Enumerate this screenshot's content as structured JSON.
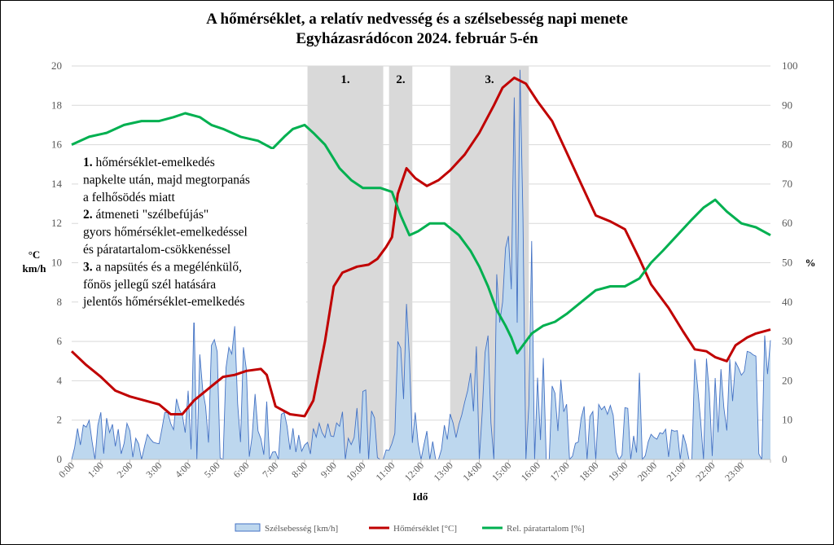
{
  "chart_data": {
    "type": "line",
    "title": "A hőmérséklet, a relatív nedvesség és a szélsebesség napi menete",
    "subtitle": "Egyházasrádócon 2024. február 5-én",
    "xlabel": "Idő",
    "ylabel_left": [
      "°C",
      "km/h"
    ],
    "ylabel_right": "%",
    "xlim_hours": [
      0,
      24
    ],
    "ylim_left": [
      0,
      20
    ],
    "ylim_right": [
      0,
      100
    ],
    "yticks_left": [
      "0",
      "2",
      "4",
      "6",
      "8",
      "10",
      "12",
      "14",
      "16",
      "18",
      "20"
    ],
    "yticks_right": [
      "0",
      "10",
      "20",
      "30",
      "40",
      "50",
      "60",
      "70",
      "80",
      "90",
      "100"
    ],
    "xticks": [
      "0:00",
      "1:00",
      "2:00",
      "3:00",
      "4:00",
      "5:00",
      "6:00",
      "7:00",
      "8:00",
      "9:00",
      "10:00",
      "11:00",
      "12:00",
      "13:00",
      "14:00",
      "15:00",
      "16:00",
      "17:00",
      "18:00",
      "19:00",
      "20:00",
      "21:00",
      "22:00",
      "23:00"
    ],
    "grid": "horizontal",
    "colors": {
      "wind_fill": "#bdd7ee",
      "wind_line": "#4472c4",
      "temp": "#c00000",
      "rh": "#00b050",
      "band": "#d9d9d9"
    },
    "shaded_periods": [
      {
        "label": "1.",
        "start_h": 8.1,
        "end_h": 10.7
      },
      {
        "label": "2.",
        "start_h": 10.9,
        "end_h": 11.7
      },
      {
        "label": "3.",
        "start_h": 13.0,
        "end_h": 15.7
      }
    ],
    "series": [
      {
        "name": "Szélsebesség [km/h]",
        "axis": "left",
        "style": "area",
        "step_h": 0.1,
        "seed": 7,
        "envelope": [
          [
            0,
            1.0
          ],
          [
            0.5,
            1.2
          ],
          [
            1,
            1.3
          ],
          [
            1.5,
            0.9
          ],
          [
            2,
            1.0
          ],
          [
            2.5,
            0.9
          ],
          [
            3,
            1.2
          ],
          [
            3.5,
            1.5
          ],
          [
            4,
            2.2
          ],
          [
            4.5,
            2.8
          ],
          [
            5,
            3.6
          ],
          [
            5.5,
            3.9
          ],
          [
            6,
            3.6
          ],
          [
            6.5,
            2.5
          ],
          [
            7,
            1.5
          ],
          [
            7.5,
            1.0
          ],
          [
            8,
            0.5
          ],
          [
            8.5,
            1.0
          ],
          [
            9,
            1.3
          ],
          [
            9.5,
            1.8
          ],
          [
            10,
            2.1
          ],
          [
            10.5,
            1.3
          ],
          [
            10.8,
            0.4
          ],
          [
            11,
            2.0
          ],
          [
            11.3,
            4.2
          ],
          [
            11.6,
            3.2
          ],
          [
            12,
            1.5
          ],
          [
            12.5,
            1.0
          ],
          [
            13,
            1.2
          ],
          [
            13.5,
            2.2
          ],
          [
            14,
            3.2
          ],
          [
            14.5,
            4.8
          ],
          [
            15,
            6.5
          ],
          [
            15.5,
            5.5
          ],
          [
            16,
            3.0
          ],
          [
            16.5,
            2.3
          ],
          [
            17,
            2.0
          ],
          [
            17.5,
            1.7
          ],
          [
            18,
            1.5
          ],
          [
            18.5,
            1.6
          ],
          [
            19,
            1.4
          ],
          [
            19.5,
            1.2
          ],
          [
            20,
            0.8
          ],
          [
            20.5,
            1.0
          ],
          [
            21,
            1.8
          ],
          [
            21.5,
            2.4
          ],
          [
            22,
            2.7
          ],
          [
            22.5,
            2.9
          ],
          [
            23,
            3.1
          ],
          [
            23.5,
            3.3
          ],
          [
            24,
            3.5
          ]
        ],
        "peaks": [
          [
            4.2,
            7.5
          ],
          [
            5.9,
            5.7
          ],
          [
            11.2,
            6.0
          ],
          [
            11.5,
            7.9
          ],
          [
            14.3,
            6.3
          ],
          [
            14.8,
            8.0
          ],
          [
            15.2,
            18.4
          ],
          [
            15.35,
            19.8
          ],
          [
            15.5,
            12.3
          ],
          [
            15.8,
            11.1
          ],
          [
            19.5,
            4.4
          ],
          [
            21.4,
            5.1
          ],
          [
            23.8,
            6.3
          ]
        ]
      },
      {
        "name": "Hőmérséklet [°C]",
        "axis": "left",
        "style": "line",
        "points": [
          [
            0,
            5.5
          ],
          [
            0.5,
            4.8
          ],
          [
            1,
            4.2
          ],
          [
            1.5,
            3.5
          ],
          [
            2,
            3.2
          ],
          [
            2.5,
            3.0
          ],
          [
            3,
            2.8
          ],
          [
            3.4,
            2.3
          ],
          [
            3.8,
            2.3
          ],
          [
            4.2,
            3.0
          ],
          [
            4.7,
            3.6
          ],
          [
            5.2,
            4.2
          ],
          [
            5.6,
            4.3
          ],
          [
            6.0,
            4.5
          ],
          [
            6.5,
            4.6
          ],
          [
            6.7,
            4.3
          ],
          [
            7.0,
            2.7
          ],
          [
            7.5,
            2.3
          ],
          [
            8.0,
            2.2
          ],
          [
            8.3,
            3.0
          ],
          [
            8.7,
            6.0
          ],
          [
            9.0,
            8.8
          ],
          [
            9.3,
            9.5
          ],
          [
            9.8,
            9.8
          ],
          [
            10.2,
            9.9
          ],
          [
            10.5,
            10.2
          ],
          [
            10.8,
            10.8
          ],
          [
            11.0,
            11.3
          ],
          [
            11.2,
            13.5
          ],
          [
            11.5,
            14.8
          ],
          [
            11.8,
            14.3
          ],
          [
            12.2,
            13.9
          ],
          [
            12.6,
            14.2
          ],
          [
            13.0,
            14.7
          ],
          [
            13.5,
            15.5
          ],
          [
            14.0,
            16.6
          ],
          [
            14.5,
            18.0
          ],
          [
            14.8,
            18.9
          ],
          [
            15.2,
            19.4
          ],
          [
            15.6,
            19.1
          ],
          [
            16.0,
            18.2
          ],
          [
            16.5,
            17.2
          ],
          [
            17.0,
            15.6
          ],
          [
            17.5,
            14.0
          ],
          [
            18.0,
            12.4
          ],
          [
            18.5,
            12.1
          ],
          [
            19.0,
            11.7
          ],
          [
            19.5,
            10.2
          ],
          [
            19.9,
            8.9
          ],
          [
            20.5,
            7.7
          ],
          [
            21.0,
            6.5
          ],
          [
            21.4,
            5.6
          ],
          [
            21.8,
            5.5
          ],
          [
            22.1,
            5.2
          ],
          [
            22.5,
            5.0
          ],
          [
            22.8,
            5.8
          ],
          [
            23.2,
            6.2
          ],
          [
            23.5,
            6.4
          ],
          [
            24.0,
            6.6
          ]
        ]
      },
      {
        "name": "Rel. páratartalom [%]",
        "axis": "right",
        "style": "line",
        "points": [
          [
            0,
            80
          ],
          [
            0.6,
            82
          ],
          [
            1.2,
            83
          ],
          [
            1.8,
            85
          ],
          [
            2.4,
            86
          ],
          [
            3.0,
            86
          ],
          [
            3.5,
            87
          ],
          [
            3.9,
            88
          ],
          [
            4.4,
            87
          ],
          [
            4.8,
            85
          ],
          [
            5.2,
            84
          ],
          [
            5.8,
            82
          ],
          [
            6.4,
            81
          ],
          [
            6.9,
            79
          ],
          [
            7.3,
            82
          ],
          [
            7.6,
            84
          ],
          [
            8.0,
            85
          ],
          [
            8.3,
            83
          ],
          [
            8.7,
            80
          ],
          [
            9.2,
            74
          ],
          [
            9.6,
            71
          ],
          [
            10.0,
            69
          ],
          [
            10.6,
            69
          ],
          [
            11.0,
            68
          ],
          [
            11.3,
            62
          ],
          [
            11.6,
            57
          ],
          [
            11.9,
            58
          ],
          [
            12.3,
            60
          ],
          [
            12.8,
            60
          ],
          [
            13.3,
            57
          ],
          [
            13.7,
            53
          ],
          [
            14.0,
            49
          ],
          [
            14.3,
            44
          ],
          [
            14.6,
            38
          ],
          [
            14.9,
            34
          ],
          [
            15.1,
            31
          ],
          [
            15.3,
            27
          ],
          [
            15.5,
            29
          ],
          [
            15.8,
            32
          ],
          [
            16.2,
            34
          ],
          [
            16.6,
            35
          ],
          [
            17.0,
            37
          ],
          [
            17.5,
            40
          ],
          [
            18.0,
            43
          ],
          [
            18.5,
            44
          ],
          [
            19.0,
            44
          ],
          [
            19.5,
            46
          ],
          [
            19.9,
            50
          ],
          [
            20.3,
            53
          ],
          [
            20.8,
            57
          ],
          [
            21.3,
            61
          ],
          [
            21.7,
            64
          ],
          [
            22.1,
            66
          ],
          [
            22.5,
            63
          ],
          [
            23.0,
            60
          ],
          [
            23.5,
            59
          ],
          [
            24.0,
            57
          ]
        ]
      }
    ],
    "annotation_lines": [
      {
        "num": "1.",
        "text": " hőmérséklet-emelkedés"
      },
      {
        "num": "",
        "text": "napkelte után, majd megtorpanás"
      },
      {
        "num": "",
        "text": "a felhősödés miatt"
      },
      {
        "num": "2.",
        "text": " átmeneti \"szélbefújás\""
      },
      {
        "num": "",
        "text": "gyors hőmérséklet-emelkedéssel"
      },
      {
        "num": "",
        "text": "és páratartalom-csökkenéssel"
      },
      {
        "num": "3.",
        "text": " a napsütés és a megélénkülő,"
      },
      {
        "num": "",
        "text": "főnös jellegű szél hatására"
      },
      {
        "num": "",
        "text": "jelentős hőmérséklet-emelkedés"
      }
    ]
  }
}
